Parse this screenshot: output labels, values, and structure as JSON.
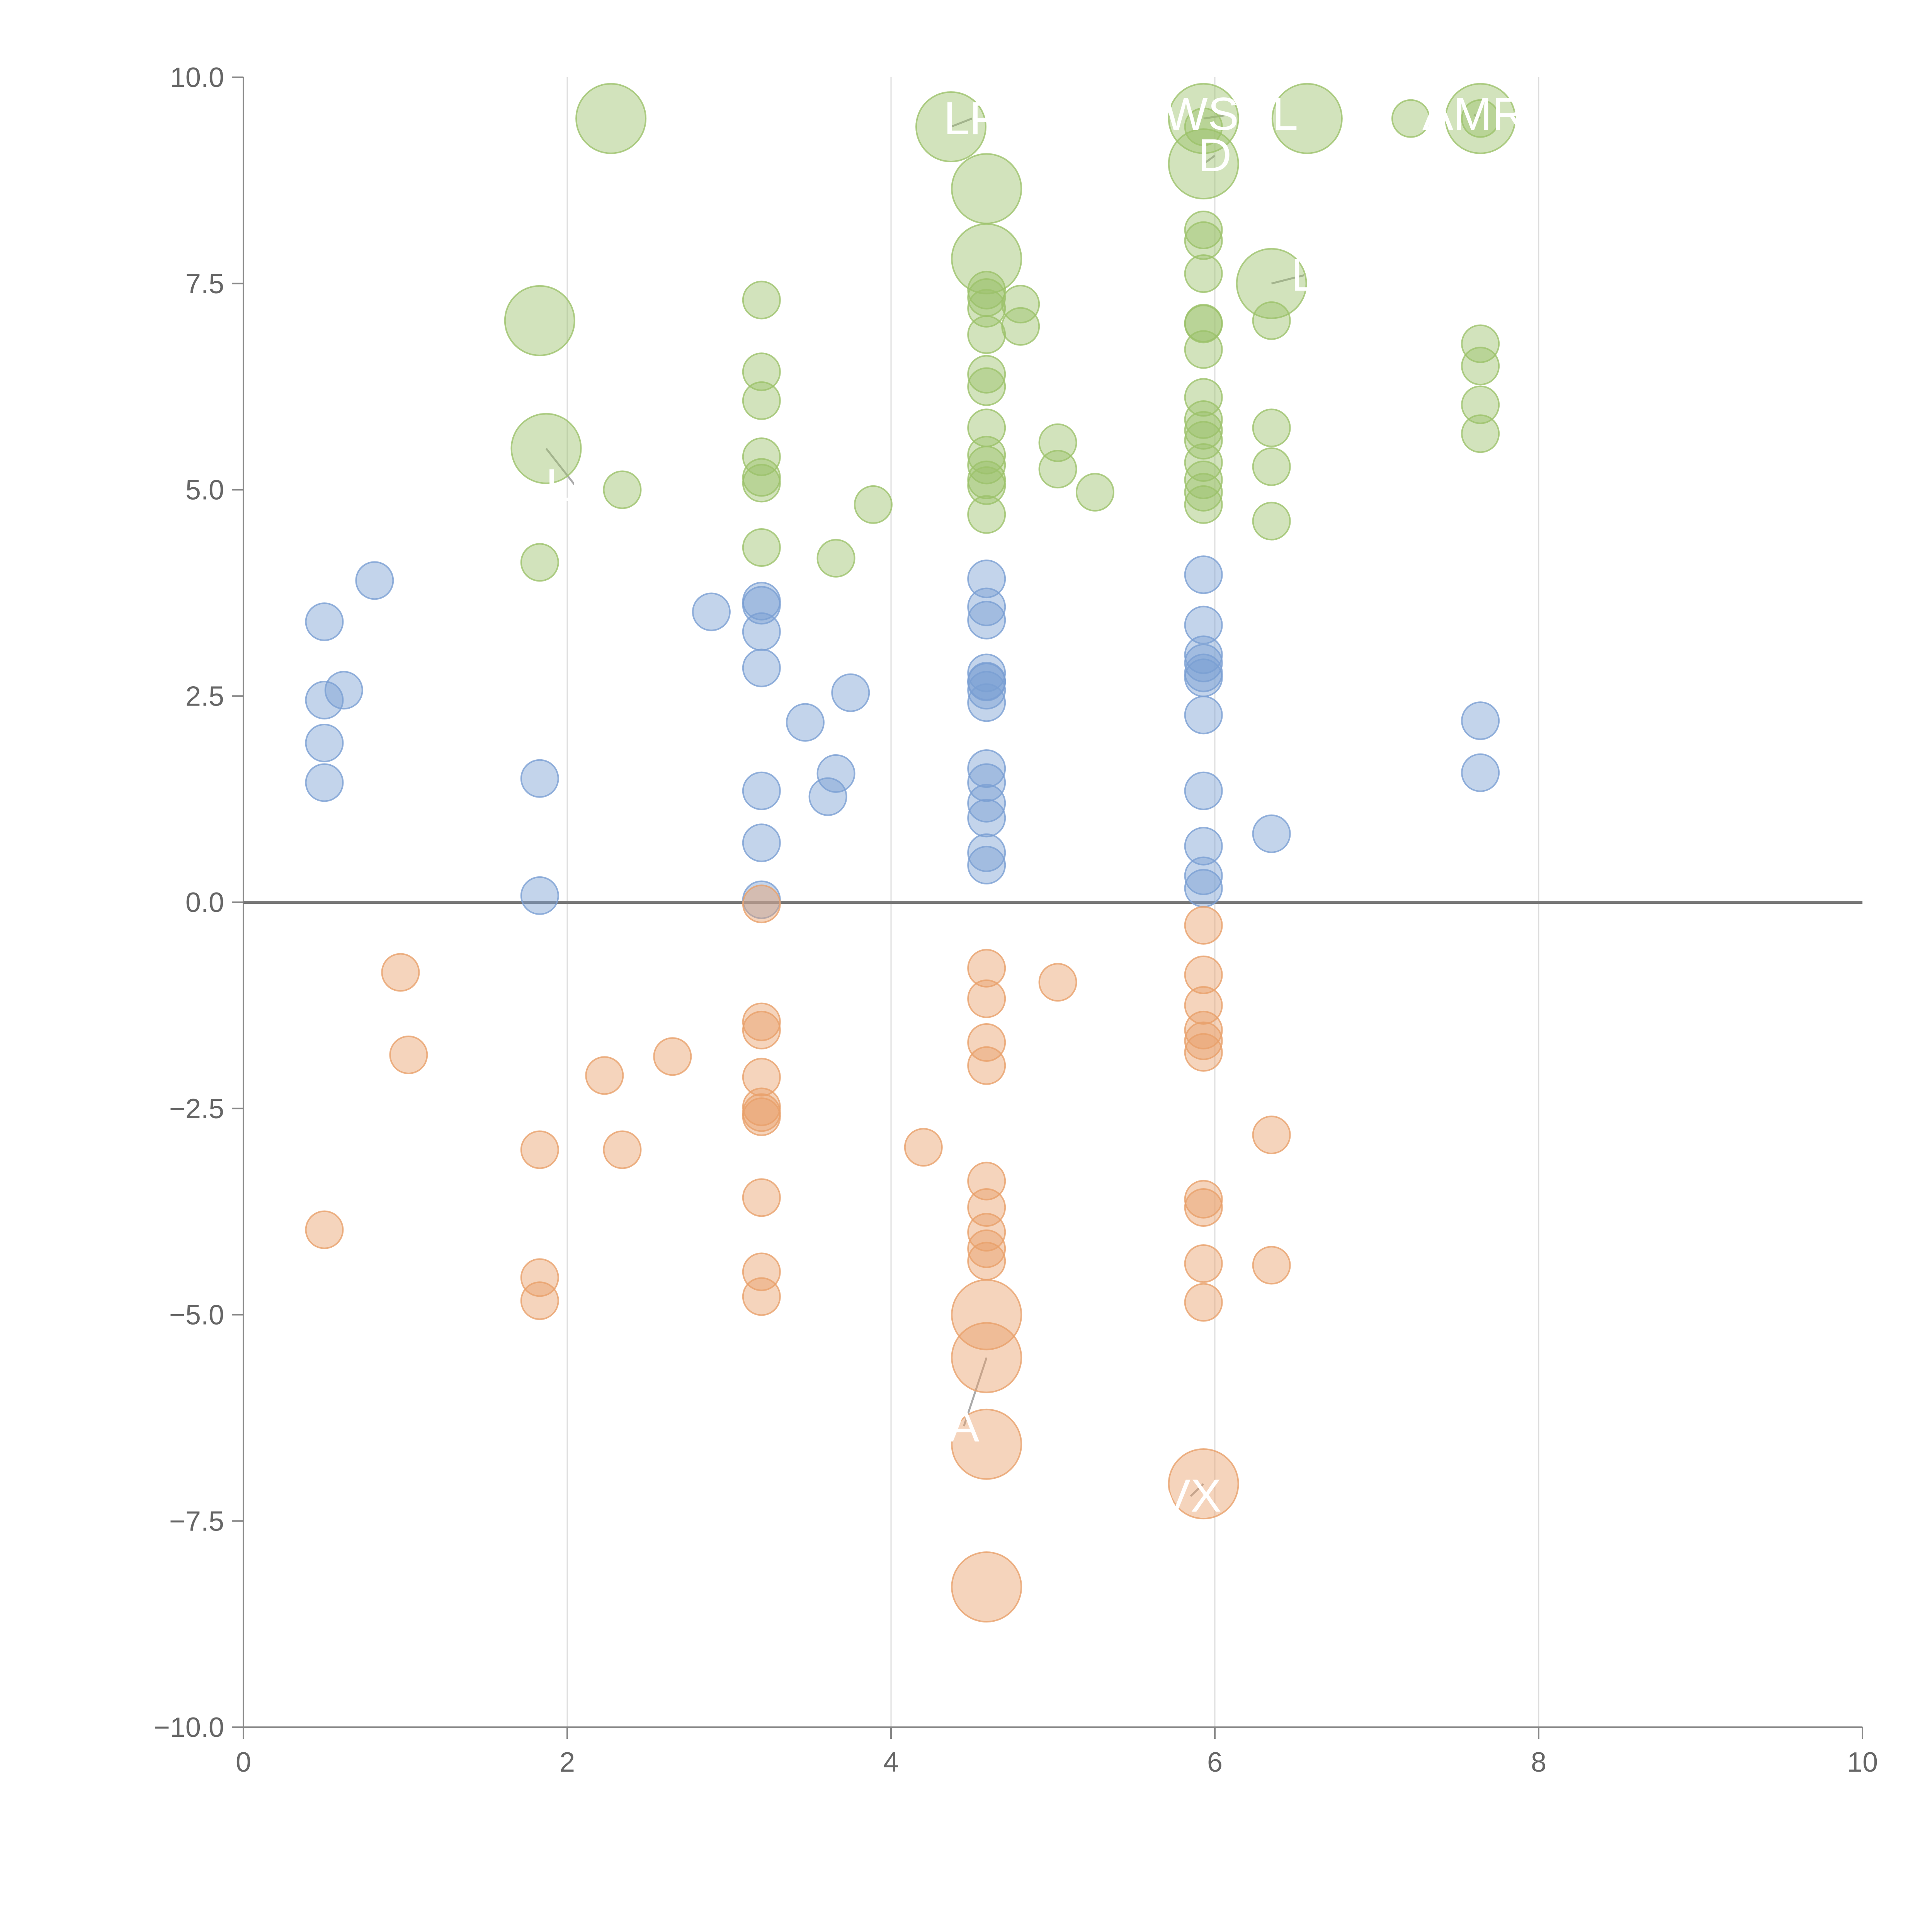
{
  "chart_data": {
    "type": "scatter",
    "title": "",
    "xlabel": "",
    "ylabel": "",
    "xlim": [
      0,
      10
    ],
    "ylim": [
      -10,
      10
    ],
    "x_ticks": [
      0,
      2,
      4,
      6,
      8,
      10
    ],
    "x_tick_labels": [
      "0",
      "2",
      "4",
      "6",
      "8",
      "10"
    ],
    "y_ticks": [
      -10,
      -7.5,
      -5,
      -2.5,
      0,
      2.5,
      5,
      7.5,
      10
    ],
    "y_tick_labels": [
      "−10.0",
      "−7.5",
      "−5.0",
      "−2.5",
      "0.0",
      "2.5",
      "5.0",
      "7.5",
      "10.0"
    ],
    "vertical_gridlines_at": [
      2,
      4,
      6,
      8
    ],
    "zero_line": true,
    "legend": "none",
    "series": [
      {
        "name": "green",
        "color": "#9cc26a",
        "x": [
          2.27,
          4.37,
          4.59,
          4.59,
          5.93,
          5.93,
          6.57,
          7.21,
          7.64,
          7.64,
          1.83,
          1.87,
          2.34,
          3.2,
          3.2,
          3.2,
          3.2,
          3.2,
          3.2,
          3.2,
          3.66,
          3.89,
          4.59,
          4.59,
          4.59,
          4.59,
          4.59,
          4.59,
          4.59,
          4.59,
          4.59,
          4.59,
          4.59,
          4.59,
          4.8,
          4.8,
          5.03,
          5.03,
          5.26,
          5.93,
          5.93,
          5.93,
          5.93,
          5.93,
          5.93,
          5.93,
          5.93,
          5.93,
          5.93,
          5.93,
          5.93,
          5.93,
          5.93,
          5.93,
          6.35,
          6.35,
          6.35,
          6.35,
          6.35,
          7.64,
          7.64,
          7.64,
          7.64,
          1.83
        ],
        "y": [
          9.5,
          9.4,
          8.65,
          7.8,
          9.5,
          8.95,
          9.5,
          9.5,
          9.5,
          9.5,
          7.05,
          5.5,
          5.0,
          7.3,
          6.43,
          6.08,
          5.4,
          5.15,
          5.08,
          4.3,
          4.17,
          4.82,
          7.42,
          7.33,
          7.2,
          6.88,
          6.4,
          6.25,
          5.75,
          5.42,
          5.3,
          5.12,
          5.05,
          4.7,
          7.25,
          6.98,
          5.57,
          5.25,
          4.97,
          8.15,
          8.02,
          7.62,
          7.02,
          6.7,
          6.12,
          5.85,
          5.72,
          5.6,
          5.33,
          5.12,
          4.97,
          4.82,
          9.4,
          7.01,
          7.5,
          7.05,
          5.75,
          5.28,
          4.62,
          6.77,
          6.5,
          6.03,
          5.68,
          4.12
        ],
        "sizes": [
          3,
          3,
          3,
          3,
          3,
          3,
          3,
          1,
          3,
          1,
          3,
          3,
          1,
          1,
          1,
          1,
          1,
          1,
          1,
          1,
          1,
          1,
          1,
          1,
          1,
          1,
          1,
          1,
          1,
          1,
          1,
          1,
          1,
          1,
          1,
          1,
          1,
          1,
          1,
          1,
          1,
          1,
          1,
          1,
          1,
          1,
          1,
          1,
          1,
          1,
          1,
          1,
          1,
          1,
          3,
          1,
          1,
          1,
          1,
          1,
          1,
          1,
          1,
          1
        ]
      },
      {
        "name": "blue",
        "color": "#7a9fd3",
        "x": [
          0.5,
          0.81,
          0.5,
          0.62,
          0.5,
          0.5,
          1.83,
          1.83,
          2.89,
          3.2,
          3.2,
          3.2,
          3.2,
          3.2,
          3.2,
          3.2,
          3.47,
          3.61,
          3.66,
          3.75,
          4.59,
          4.59,
          4.59,
          4.59,
          4.59,
          4.59,
          4.59,
          4.59,
          4.59,
          4.59,
          4.59,
          4.59,
          4.59,
          4.59,
          5.93,
          5.93,
          5.93,
          5.93,
          5.93,
          5.93,
          5.93,
          5.93,
          5.93,
          5.93,
          5.93,
          6.35,
          7.64,
          7.64
        ],
        "y": [
          3.4,
          3.9,
          2.45,
          2.57,
          1.93,
          1.45,
          1.5,
          0.08,
          3.52,
          3.65,
          3.6,
          3.28,
          2.84,
          1.35,
          0.72,
          0.03,
          2.18,
          1.28,
          1.56,
          2.54,
          3.92,
          3.58,
          3.42,
          2.78,
          2.67,
          2.57,
          2.42,
          1.62,
          1.45,
          1.2,
          1.02,
          0.6,
          0.45,
          2.68,
          3.97,
          3.36,
          3.0,
          2.9,
          2.72,
          2.27,
          1.35,
          0.68,
          0.32,
          0.17,
          2.78,
          0.83,
          2.2,
          1.57
        ],
        "sizes": [
          1,
          1,
          1,
          1,
          1,
          1,
          1,
          1,
          1,
          1,
          1,
          1,
          1,
          1,
          1,
          1,
          1,
          1,
          1,
          1,
          1,
          1,
          1,
          1,
          1,
          1,
          1,
          1,
          1,
          1,
          1,
          1,
          1,
          1,
          1,
          1,
          1,
          1,
          1,
          1,
          1,
          1,
          1,
          1,
          1,
          1,
          1,
          1
        ]
      },
      {
        "name": "orange",
        "color": "#e8a06a",
        "x": [
          0.97,
          1.02,
          0.5,
          1.83,
          1.83,
          1.83,
          2.23,
          2.34,
          2.65,
          3.2,
          3.2,
          3.2,
          3.2,
          3.2,
          3.2,
          3.2,
          3.2,
          3.2,
          3.2,
          4.2,
          4.59,
          4.59,
          4.59,
          4.59,
          4.59,
          4.59,
          4.59,
          4.59,
          4.59,
          4.59,
          4.59,
          4.59,
          4.59,
          5.03,
          5.93,
          5.93,
          5.93,
          5.93,
          5.93,
          5.93,
          5.93,
          5.93,
          5.93,
          5.93,
          5.93,
          6.35,
          6.35
        ],
        "y": [
          -0.85,
          -1.85,
          -3.97,
          -3.0,
          -4.55,
          -4.83,
          -2.1,
          -3.0,
          -1.87,
          -1.45,
          -1.55,
          -2.12,
          -2.48,
          -2.6,
          -3.58,
          -4.48,
          -4.78,
          -0.02,
          -2.55,
          -2.97,
          -0.8,
          -1.17,
          -1.7,
          -1.98,
          -3.38,
          -3.7,
          -4.2,
          -4.35,
          -5.0,
          -5.52,
          -6.57,
          -8.3,
          -4.0,
          -0.97,
          -0.28,
          -0.88,
          -1.25,
          -1.55,
          -1.68,
          -1.82,
          -3.6,
          -3.7,
          -4.38,
          -4.85,
          -7.05,
          -2.82,
          -4.4
        ],
        "sizes": [
          1,
          1,
          1,
          1,
          1,
          1,
          1,
          1,
          1,
          1,
          1,
          1,
          1,
          1,
          1,
          1,
          1,
          1,
          1,
          1,
          1,
          1,
          1,
          1,
          1,
          1,
          1,
          1,
          3,
          3,
          3,
          3,
          1,
          1,
          1,
          1,
          1,
          1,
          1,
          1,
          1,
          1,
          1,
          1,
          3,
          1,
          1
        ]
      }
    ],
    "annotations": [
      {
        "text": "LP",
        "x": 4.37,
        "y": 9.4,
        "label_x": 4.5,
        "label_y": 9.5
      },
      {
        "text": "WSCL",
        "x": 5.93,
        "y": 9.5,
        "label_x": 6.1,
        "label_y": 9.55
      },
      {
        "text": "AMR",
        "x": 7.64,
        "y": 9.5,
        "label_x": 7.6,
        "label_y": 9.55
      },
      {
        "text": "L",
        "x": 6.35,
        "y": 7.5,
        "label_x": 6.55,
        "label_y": 7.6
      },
      {
        "text": "D",
        "x": 5.93,
        "y": 8.95,
        "label_x": 6.0,
        "label_y": 9.05
      },
      {
        "text": "LC",
        "x": 1.87,
        "y": 5.5,
        "label_x": 2.05,
        "label_y": 5.05
      },
      {
        "text": "A",
        "x": 4.59,
        "y": -5.52,
        "label_x": 4.45,
        "label_y": -6.35
      },
      {
        "text": "VX",
        "x": 5.93,
        "y": -7.05,
        "label_x": 5.85,
        "label_y": -7.2
      }
    ]
  }
}
